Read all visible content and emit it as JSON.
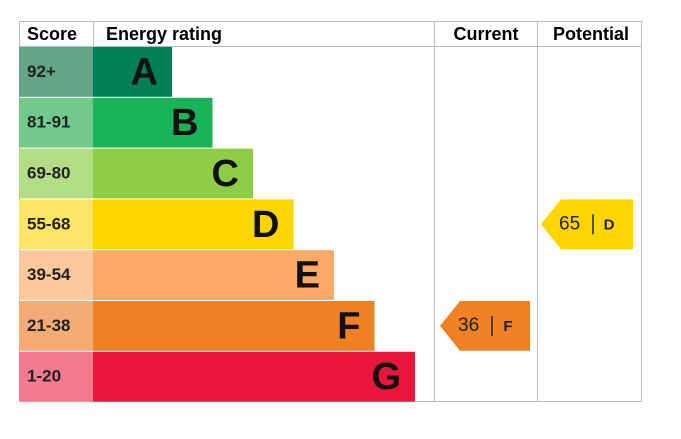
{
  "chart_data": {
    "type": "epc",
    "headers": {
      "score": "Score",
      "rating": "Energy rating",
      "current": "Current",
      "potential": "Potential"
    },
    "bands": [
      {
        "score": "92+",
        "rating": "A",
        "color": "#008054",
        "score_color": "#63a584"
      },
      {
        "score": "81-91",
        "rating": "B",
        "color": "#19b459",
        "score_color": "#73c98b"
      },
      {
        "score": "69-80",
        "rating": "C",
        "color": "#8dce46",
        "score_color": "#b3dd84"
      },
      {
        "score": "55-68",
        "rating": "D",
        "color": "#ffd500",
        "score_color": "#ffe566"
      },
      {
        "score": "39-54",
        "rating": "E",
        "color": "#fcaa65",
        "score_color": "#fdc89b"
      },
      {
        "score": "21-38",
        "rating": "F",
        "color": "#ef8023",
        "score_color": "#f4ab76"
      },
      {
        "score": "1-20",
        "rating": "G",
        "color": "#e9153b",
        "score_color": "#f27a90"
      }
    ],
    "current": {
      "value": 36,
      "rating": "F"
    },
    "potential": {
      "value": 65,
      "rating": "D"
    }
  }
}
